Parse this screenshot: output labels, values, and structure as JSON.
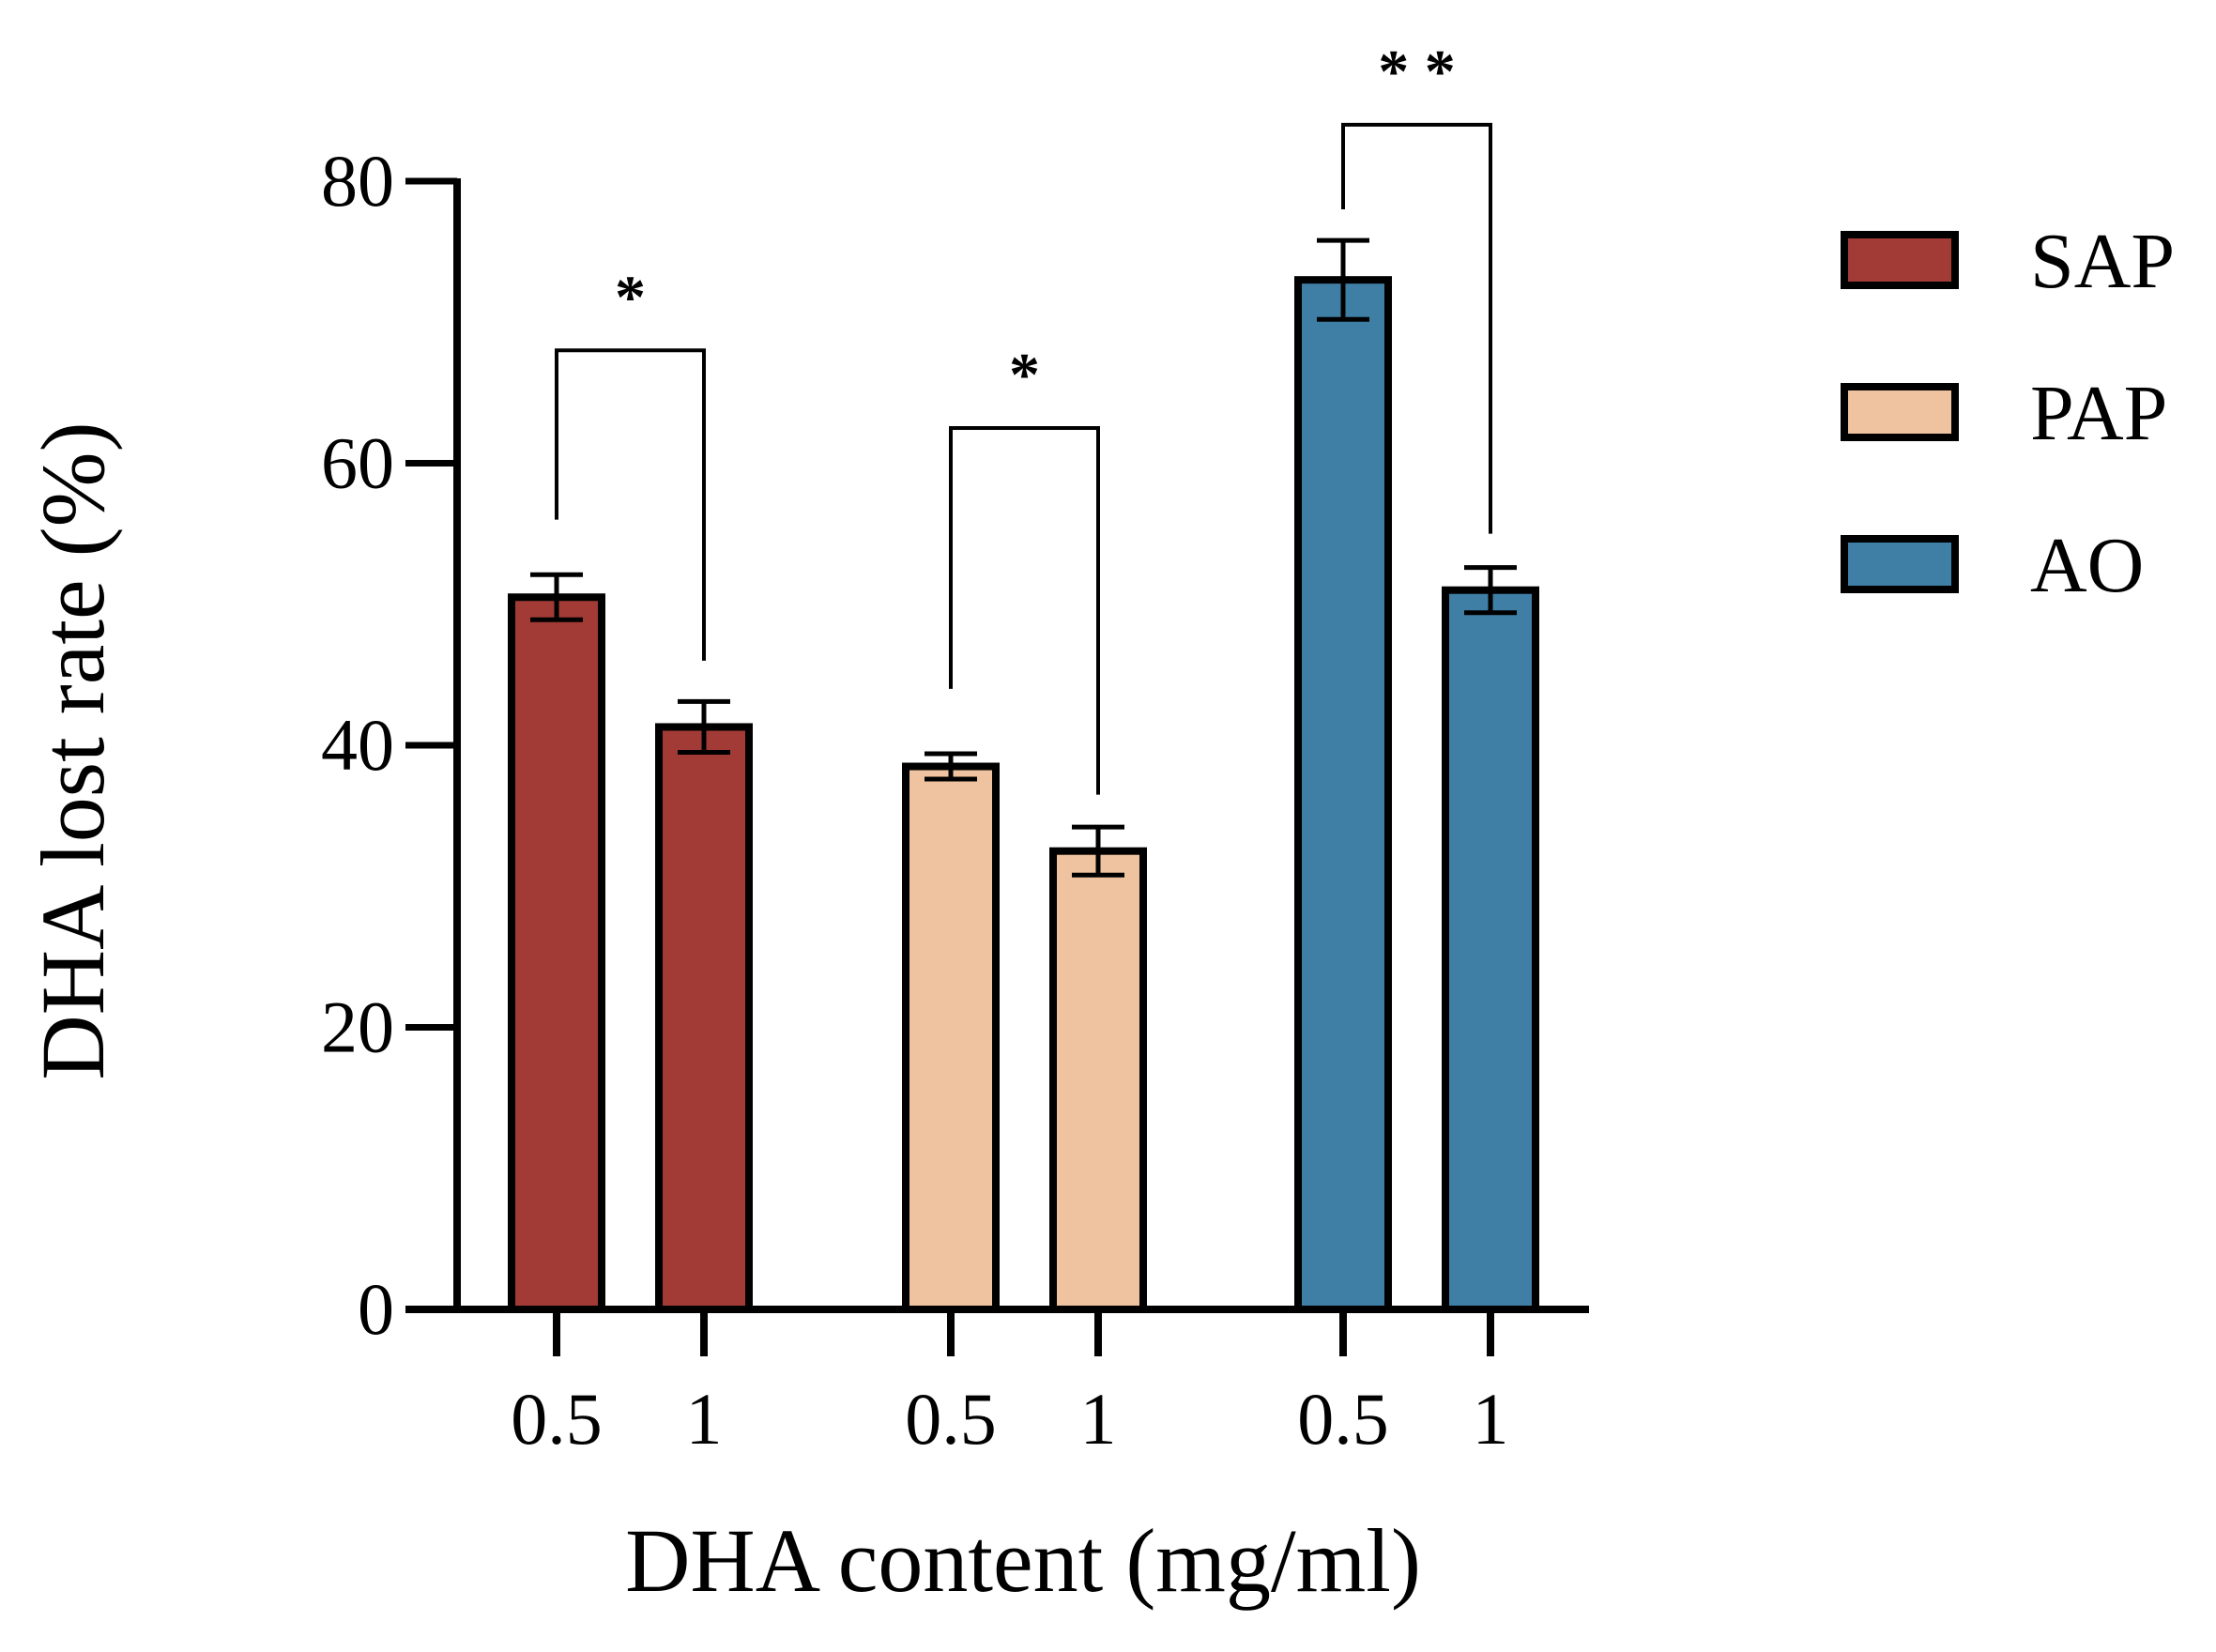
{
  "chart_data": {
    "type": "bar",
    "xlabel": "DHA content (mg/ml)",
    "ylabel": "DHA lost rate (%)",
    "ylim": [
      0,
      80
    ],
    "yticks": [
      0,
      20,
      40,
      60,
      80
    ],
    "grid": false,
    "legend_position": "right",
    "series": [
      {
        "name": "SAP",
        "color": "#a23b35",
        "categories": [
          "0.5",
          "1"
        ],
        "values": [
          50.5,
          41.3
        ],
        "errors": [
          1.6,
          1.8
        ]
      },
      {
        "name": "PAP",
        "color": "#f0c3a0",
        "categories": [
          "0.5",
          "1"
        ],
        "values": [
          38.5,
          32.5
        ],
        "errors": [
          0.9,
          1.7
        ]
      },
      {
        "name": "AO",
        "color": "#3f7fa6",
        "categories": [
          "0.5",
          "1"
        ],
        "values": [
          73.0,
          51.0
        ],
        "errors": [
          2.8,
          1.6
        ]
      }
    ],
    "annotations": [
      {
        "series": "SAP",
        "label": "*"
      },
      {
        "series": "PAP",
        "label": "*"
      },
      {
        "series": "AO",
        "label": "* *"
      }
    ]
  }
}
